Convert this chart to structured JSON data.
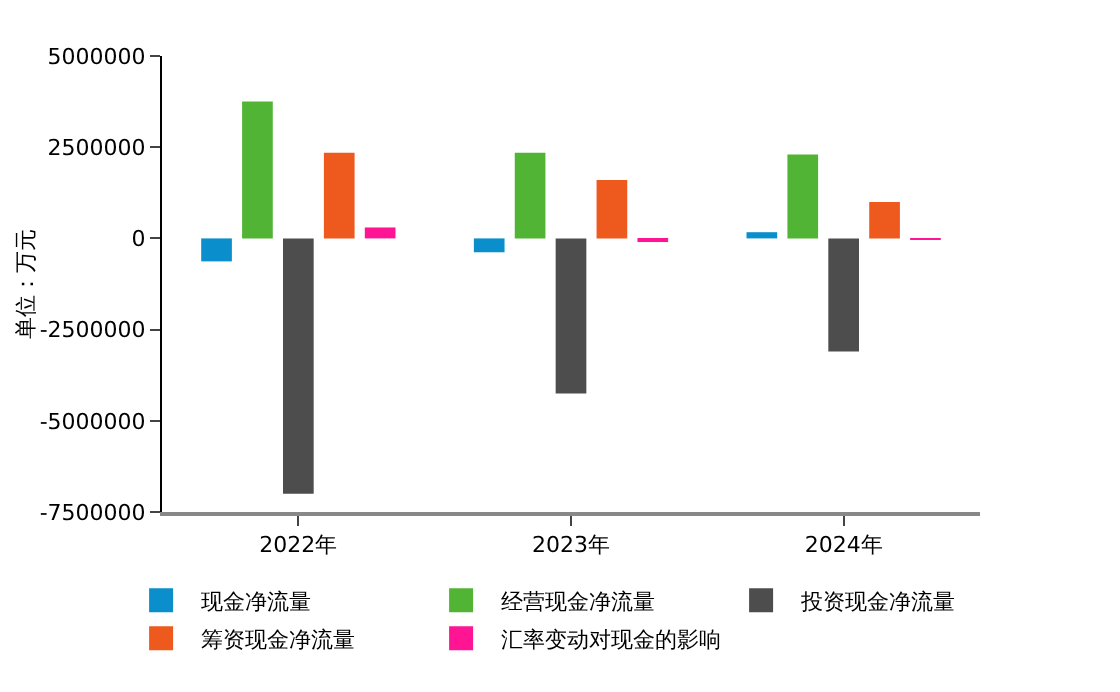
{
  "chart_data": {
    "type": "bar",
    "ylabel": "单位：万元",
    "categories": [
      "2022年",
      "2023年",
      "2024年"
    ],
    "series": [
      {
        "name": "现金净流量",
        "color": "#0a8fcc",
        "values": [
          -630000,
          -380000,
          170000
        ]
      },
      {
        "name": "经营现金净流量",
        "color": "#52b435",
        "values": [
          3750000,
          2350000,
          2300000
        ]
      },
      {
        "name": "投资现金净流量",
        "color": "#4d4d4d",
        "values": [
          -7000000,
          -4250000,
          -3100000
        ]
      },
      {
        "name": "筹资现金净流量",
        "color": "#ee5a1e",
        "values": [
          2350000,
          1600000,
          1000000
        ]
      },
      {
        "name": "汇率变动对现金的影响",
        "color": "#ff1493",
        "values": [
          300000,
          -100000,
          -40000
        ]
      }
    ],
    "ylim": [
      -7500000,
      5000000
    ],
    "yticks": [
      -7500000,
      -5000000,
      -2500000,
      0,
      2500000,
      5000000
    ],
    "legend": "bottom"
  }
}
